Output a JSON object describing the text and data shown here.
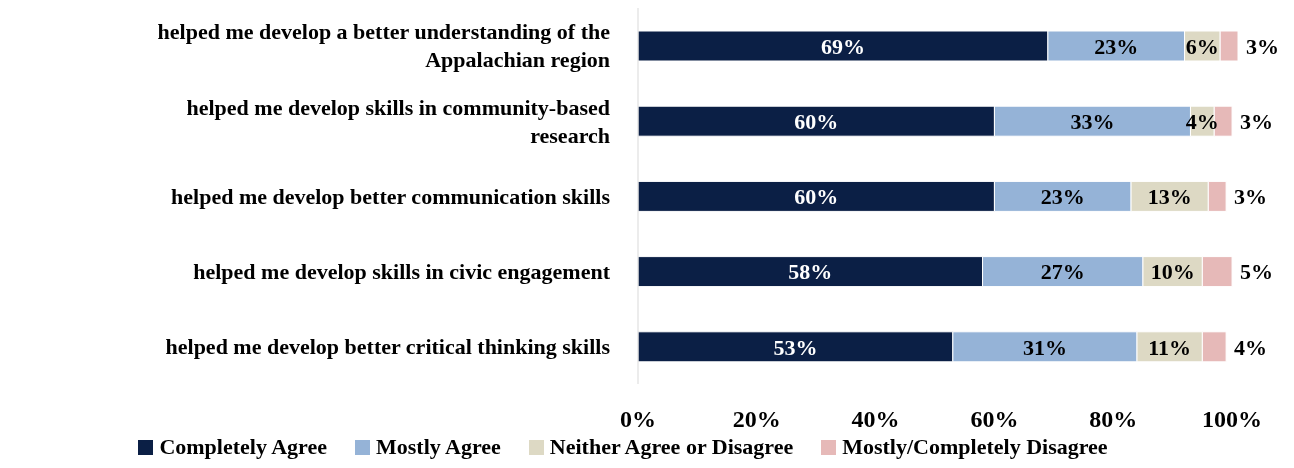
{
  "chart_data": {
    "type": "bar",
    "orientation": "horizontal",
    "stacked": true,
    "categories": [
      "helped me develop a better understanding of the Appalachian region",
      "helped me develop skills in community-based research",
      "helped me develop better communication skills",
      "helped me develop skills in civic engagement",
      "helped me develop better critical thinking skills"
    ],
    "series": [
      {
        "name": "Completely Agree",
        "color": "#0b1f45",
        "values": [
          69,
          60,
          60,
          58,
          53
        ],
        "value_labels": [
          "69%",
          "60%",
          "60%",
          "58%",
          "53%"
        ]
      },
      {
        "name": "Mostly Agree",
        "color": "#95b3d7",
        "values": [
          23,
          33,
          23,
          27,
          31
        ],
        "value_labels": [
          "23%",
          "33%",
          "23%",
          "27%",
          "31%"
        ]
      },
      {
        "name": "Neither Agree or Disagree",
        "color": "#ddd9c4",
        "values": [
          6,
          4,
          13,
          10,
          11
        ],
        "value_labels": [
          "6%",
          "4%",
          "13%",
          "10%",
          "11%"
        ]
      },
      {
        "name": "Mostly/Completely Disagree",
        "color": "#e6b9b8",
        "values": [
          3,
          3,
          3,
          5,
          4
        ],
        "value_labels": [
          "3%",
          "3%",
          "3%",
          "5%",
          "4%"
        ]
      }
    ],
    "xlim": [
      0,
      101
    ],
    "xticks": [
      {
        "value": 0,
        "label": "0%"
      },
      {
        "value": 20,
        "label": "20%"
      },
      {
        "value": 40,
        "label": "40%"
      },
      {
        "value": 60,
        "label": "60%"
      },
      {
        "value": 80,
        "label": "80%"
      },
      {
        "value": 100,
        "label": "100%"
      }
    ],
    "grid": false,
    "legend": "bottom"
  }
}
